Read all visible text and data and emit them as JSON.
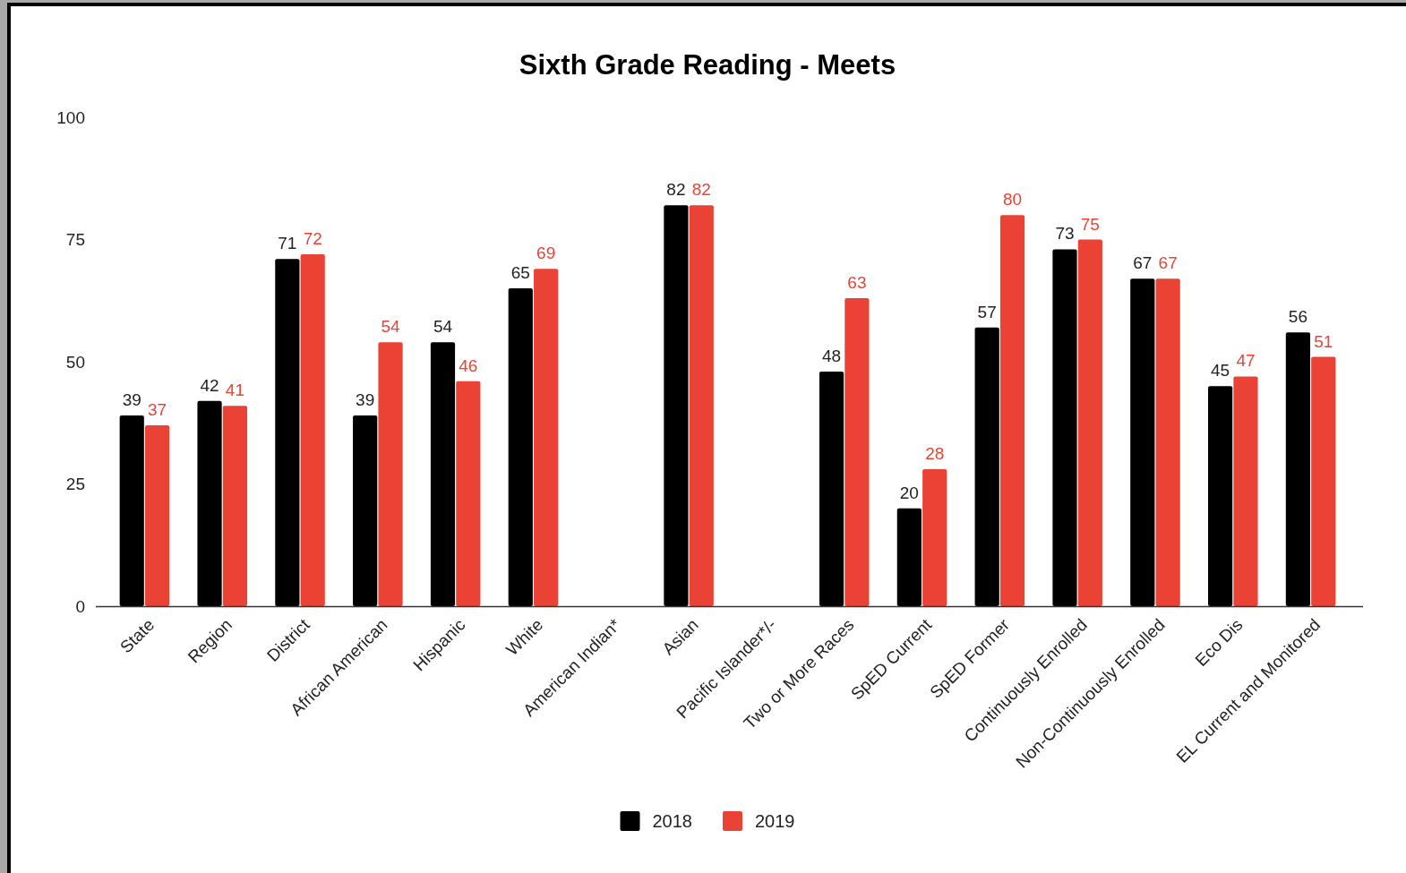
{
  "chart_data": {
    "type": "bar",
    "title": "Sixth Grade Reading - Meets",
    "categories": [
      "State",
      "Region",
      "District",
      "African American",
      "Hispanic",
      "White",
      "American Indian*",
      "Asian",
      "Pacific Islander*/-",
      "Two or More Races",
      "SpED Current",
      "SpED Former",
      "Continuously Enrolled",
      "Non-Continuously Enrolled",
      "Eco Dis",
      "EL Current and Monitored"
    ],
    "series": [
      {
        "name": "2018",
        "color": "#000000",
        "values": [
          39,
          42,
          71,
          39,
          54,
          65,
          null,
          82,
          null,
          48,
          20,
          57,
          73,
          67,
          45,
          56
        ]
      },
      {
        "name": "2019",
        "color": "#ea4335",
        "values": [
          37,
          41,
          72,
          54,
          46,
          69,
          null,
          82,
          null,
          63,
          28,
          80,
          75,
          67,
          47,
          51
        ]
      }
    ],
    "ylim": [
      0,
      100
    ],
    "yticks": [
      0,
      25,
      50,
      75,
      100
    ],
    "legend": "bottom",
    "data_labels": true
  }
}
